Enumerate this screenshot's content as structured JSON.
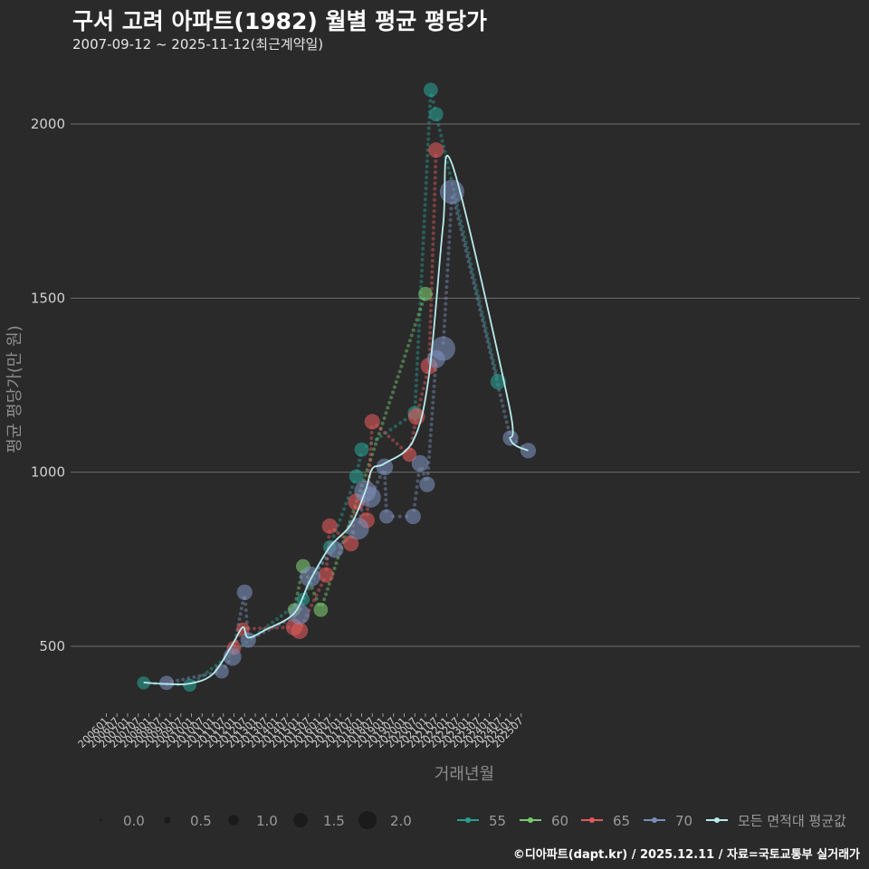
{
  "title": "구서 고려 아파트(1982) 월별 평균 평당가",
  "subtitle": "2007-09-12 ~ 2025-11-12(최근계약일)",
  "credit": "©디아파트(dapt.kr) / 2025.12.11 / 자료=국토교통부 실거래가",
  "colors": {
    "background": "#2a2a2b",
    "grid": "#6e6e6e",
    "s55": "#2a9d8f",
    "s60": "#7bc96f",
    "s65": "#e05a5a",
    "s70": "#7b8eb8",
    "avg": "#b9ecec"
  },
  "chart_data": {
    "type": "line",
    "title": "구서 고려 아파트(1982) 월별 평균 평당가",
    "xlabel": "거래년월",
    "ylabel": "평균 평당가(만 원)",
    "ylim": [
      270,
      2170
    ],
    "yticks": [
      500,
      1000,
      1500,
      2000
    ],
    "x_tick_labels": [
      "200601",
      "200607",
      "200701",
      "200707",
      "200801",
      "200807",
      "200901",
      "200907",
      "201001",
      "201007",
      "201101",
      "201107",
      "201201",
      "201207",
      "201301",
      "201307",
      "201401",
      "201407",
      "201501",
      "201507",
      "201601",
      "201607",
      "201701",
      "201707",
      "201801",
      "201807",
      "201901",
      "201907",
      "202001",
      "202007",
      "202101",
      "202107",
      "202201",
      "202207",
      "202301",
      "202307",
      "202401",
      "202407",
      "202501",
      "202507"
    ],
    "grid": true,
    "size_legend": {
      "title": "",
      "labels": [
        "0.0",
        "0.5",
        "1.0",
        "1.5",
        "2.0"
      ],
      "values": [
        0.0,
        0.5,
        1.0,
        1.5,
        2.0
      ]
    },
    "series": [
      {
        "name": "55",
        "points": [
          {
            "t": 2007.75,
            "y": 395,
            "s": 0.6
          },
          {
            "t": 2009.92,
            "y": 388,
            "s": 0.6
          },
          {
            "t": 2015.25,
            "y": 635,
            "s": 0.6
          },
          {
            "t": 2016.5,
            "y": 785,
            "s": 0.6
          },
          {
            "t": 2017.75,
            "y": 988,
            "s": 0.7
          },
          {
            "t": 2018.0,
            "y": 1065,
            "s": 0.7
          },
          {
            "t": 2020.5,
            "y": 1170,
            "s": 0.7
          },
          {
            "t": 2021.25,
            "y": 2098,
            "s": 0.7
          },
          {
            "t": 2021.5,
            "y": 2028,
            "s": 0.7
          },
          {
            "t": 2024.42,
            "y": 1260,
            "s": 0.8
          }
        ]
      },
      {
        "name": "60",
        "points": [
          {
            "t": 2014.83,
            "y": 605,
            "s": 0.6
          },
          {
            "t": 2015.25,
            "y": 730,
            "s": 0.7
          },
          {
            "t": 2016.08,
            "y": 605,
            "s": 0.7
          },
          {
            "t": 2021.0,
            "y": 1512,
            "s": 0.7
          }
        ]
      },
      {
        "name": "65",
        "points": [
          {
            "t": 2012.0,
            "y": 495,
            "s": 0.7
          },
          {
            "t": 2012.42,
            "y": 550,
            "s": 0.6
          },
          {
            "t": 2014.83,
            "y": 555,
            "s": 0.9
          },
          {
            "t": 2015.08,
            "y": 545,
            "s": 0.9
          },
          {
            "t": 2016.33,
            "y": 705,
            "s": 0.8
          },
          {
            "t": 2016.5,
            "y": 845,
            "s": 0.8
          },
          {
            "t": 2017.5,
            "y": 795,
            "s": 0.8
          },
          {
            "t": 2017.75,
            "y": 915,
            "s": 0.9
          },
          {
            "t": 2018.25,
            "y": 862,
            "s": 0.8
          },
          {
            "t": 2018.5,
            "y": 1145,
            "s": 0.8
          },
          {
            "t": 2020.25,
            "y": 1050,
            "s": 0.7
          },
          {
            "t": 2020.58,
            "y": 1160,
            "s": 0.9
          },
          {
            "t": 2021.17,
            "y": 1305,
            "s": 0.9
          },
          {
            "t": 2021.5,
            "y": 1925,
            "s": 0.8
          }
        ]
      },
      {
        "name": "70",
        "points": [
          {
            "t": 2008.83,
            "y": 395,
            "s": 0.7
          },
          {
            "t": 2011.42,
            "y": 428,
            "s": 0.7
          },
          {
            "t": 2011.92,
            "y": 470,
            "s": 1.0
          },
          {
            "t": 2012.5,
            "y": 655,
            "s": 0.8
          },
          {
            "t": 2012.67,
            "y": 518,
            "s": 0.8
          },
          {
            "t": 2015.08,
            "y": 592,
            "s": 1.2
          },
          {
            "t": 2015.58,
            "y": 700,
            "s": 1.2
          },
          {
            "t": 2016.75,
            "y": 778,
            "s": 0.9
          },
          {
            "t": 2017.83,
            "y": 838,
            "s": 1.3
          },
          {
            "t": 2018.17,
            "y": 945,
            "s": 1.3
          },
          {
            "t": 2018.42,
            "y": 928,
            "s": 1.2
          },
          {
            "t": 2019.08,
            "y": 1015,
            "s": 0.9
          },
          {
            "t": 2019.17,
            "y": 873,
            "s": 0.7
          },
          {
            "t": 2020.42,
            "y": 873,
            "s": 0.8
          },
          {
            "t": 2020.75,
            "y": 1025,
            "s": 0.9
          },
          {
            "t": 2021.08,
            "y": 965,
            "s": 0.8
          },
          {
            "t": 2021.5,
            "y": 1325,
            "s": 1.0
          },
          {
            "t": 2021.83,
            "y": 1355,
            "s": 1.5
          },
          {
            "t": 2022.25,
            "y": 1805,
            "s": 1.5
          },
          {
            "t": 2025.0,
            "y": 1098,
            "s": 0.8
          },
          {
            "t": 2025.83,
            "y": 1062,
            "s": 0.8
          }
        ]
      }
    ],
    "average_line": {
      "name": "모든 면적대 평균값",
      "points": [
        {
          "t": 2007.75,
          "y": 396
        },
        {
          "t": 2008.83,
          "y": 392
        },
        {
          "t": 2009.92,
          "y": 393
        },
        {
          "t": 2011.0,
          "y": 420
        },
        {
          "t": 2011.92,
          "y": 505
        },
        {
          "t": 2012.42,
          "y": 555
        },
        {
          "t": 2012.67,
          "y": 525
        },
        {
          "t": 2013.5,
          "y": 548
        },
        {
          "t": 2014.83,
          "y": 595
        },
        {
          "t": 2015.58,
          "y": 690
        },
        {
          "t": 2016.5,
          "y": 785
        },
        {
          "t": 2017.5,
          "y": 850
        },
        {
          "t": 2018.17,
          "y": 945
        },
        {
          "t": 2018.5,
          "y": 1010
        },
        {
          "t": 2019.08,
          "y": 1025
        },
        {
          "t": 2020.42,
          "y": 1090
        },
        {
          "t": 2021.17,
          "y": 1280
        },
        {
          "t": 2021.83,
          "y": 1710
        },
        {
          "t": 2022.25,
          "y": 1885
        },
        {
          "t": 2024.92,
          "y": 1195
        },
        {
          "t": 2025.0,
          "y": 1093
        },
        {
          "t": 2025.83,
          "y": 1062
        }
      ]
    }
  }
}
